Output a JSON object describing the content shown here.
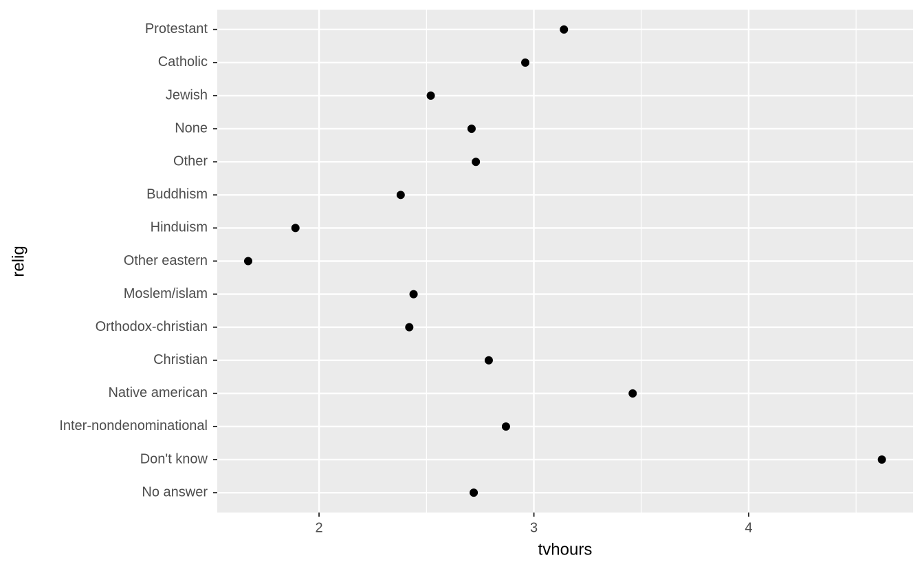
{
  "chart_data": {
    "type": "dot",
    "x_label": "tvhours",
    "y_label": "relig",
    "categories": [
      "Protestant",
      "Catholic",
      "Jewish",
      "None",
      "Other",
      "Buddhism",
      "Hinduism",
      "Other eastern",
      "Moslem/islam",
      "Orthodox-christian",
      "Christian",
      "Native american",
      "Inter-nondenominational",
      "Don't know",
      "No answer"
    ],
    "values": [
      3.14,
      2.96,
      2.52,
      2.71,
      2.73,
      2.38,
      1.89,
      1.67,
      2.44,
      2.42,
      2.79,
      3.46,
      2.87,
      4.62,
      2.72
    ],
    "color": "#000000",
    "xlim": [
      1.526,
      4.765
    ],
    "xticks": [
      2,
      3,
      4
    ],
    "xminor": [
      2.5,
      3.5,
      4.5
    ],
    "grid": true
  }
}
